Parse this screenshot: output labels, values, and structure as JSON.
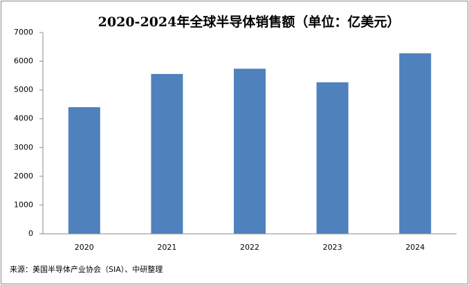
{
  "chart_data": {
    "type": "bar",
    "title": "2020-2024年全球半导体销售额（单位：亿美元）",
    "categories": [
      "2020",
      "2021",
      "2022",
      "2023",
      "2024"
    ],
    "values": [
      4404,
      5559,
      5741,
      5268,
      6276
    ],
    "color": "#4f81bd",
    "ylim": [
      0,
      7000
    ],
    "yticks": [
      0,
      1000,
      2000,
      3000,
      4000,
      5000,
      6000,
      7000
    ],
    "grid": false,
    "source": "来源：美国半导体产业协会（SIA）、中研整理"
  }
}
